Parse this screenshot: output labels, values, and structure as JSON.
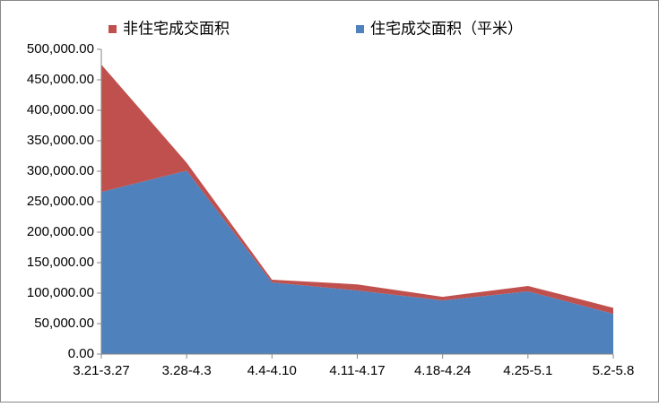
{
  "chart_data": {
    "type": "stacked_area",
    "categories": [
      "3.21-3.27",
      "3.28-4.3",
      "4.4-4.10",
      "4.11-4.17",
      "4.18-4.24",
      "4.25-5.1",
      "5.2-5.8"
    ],
    "series": [
      {
        "name": "非住宅成交面积",
        "color": "#c0504d",
        "values": [
          209000,
          13000,
          4400,
          10000,
          6000,
          8800,
          10000
        ]
      },
      {
        "name": "住宅成交面积（平米）",
        "color": "#4f81bd",
        "values": [
          266000,
          301000,
          117600,
          104400,
          88000,
          103000,
          66000
        ]
      }
    ],
    "ylim": [
      0,
      500000
    ],
    "yticks": [
      {
        "value": 0,
        "label": "0.00"
      },
      {
        "value": 50000,
        "label": "50,000.00"
      },
      {
        "value": 100000,
        "label": "100,000.00"
      },
      {
        "value": 150000,
        "label": "150,000.00"
      },
      {
        "value": 200000,
        "label": "200,000.00"
      },
      {
        "value": 250000,
        "label": "250,000.00"
      },
      {
        "value": 300000,
        "label": "300,000.00"
      },
      {
        "value": 350000,
        "label": "350,000.00"
      },
      {
        "value": 400000,
        "label": "400,000.00"
      },
      {
        "value": 450000,
        "label": "450,000.00"
      },
      {
        "value": 500000,
        "label": "500,000.00"
      }
    ],
    "legend": "top"
  }
}
